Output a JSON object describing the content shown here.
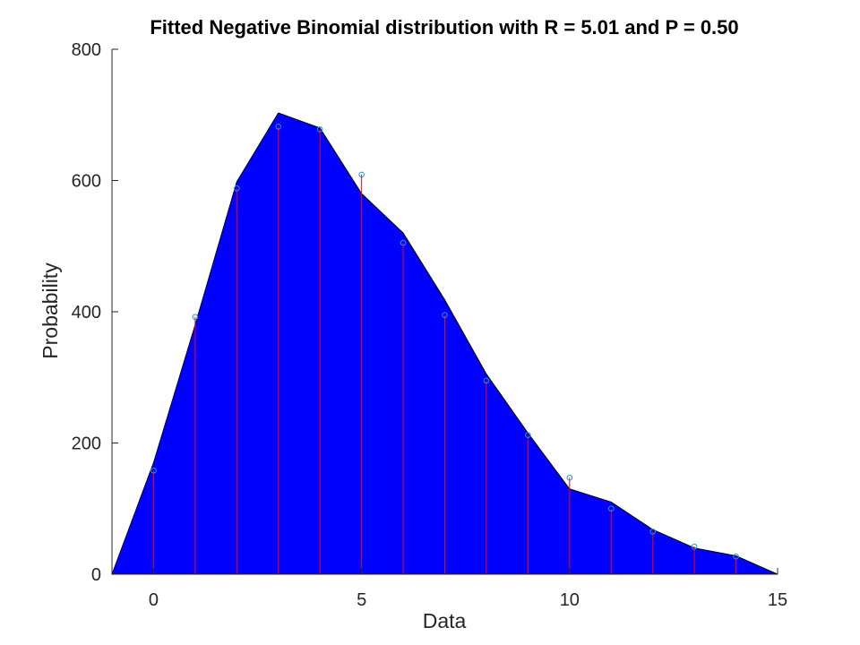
{
  "colors": {
    "fill": "#0000ff",
    "stem": "#ff0000",
    "marker": "#1a9cd0",
    "axis": "#262626",
    "background": "#ffffff"
  },
  "chart_data": {
    "type": "area",
    "title": "Fitted Negative Binomial distribution with R = 5.01 and P = 0.50",
    "xlabel": "Data",
    "ylabel": "Probability",
    "xlim": [
      -1,
      15
    ],
    "ylim": [
      0,
      800
    ],
    "xticks": [
      0,
      5,
      10,
      15
    ],
    "yticks": [
      0,
      200,
      400,
      600,
      800
    ],
    "grid": false,
    "series": [
      {
        "type": "area",
        "x": [
          -1,
          0,
          1,
          2,
          3,
          4,
          5,
          6,
          7,
          8,
          9,
          10,
          11,
          12,
          13,
          14,
          15
        ],
        "y": [
          0,
          170,
          380,
          598,
          703,
          680,
          580,
          520,
          418,
          305,
          215,
          130,
          110,
          68,
          40,
          28,
          0
        ]
      },
      {
        "type": "stem",
        "x": [
          0,
          1,
          2,
          3,
          4,
          5,
          6,
          7,
          8,
          9,
          10,
          11,
          12,
          13,
          14
        ],
        "y": [
          158,
          392,
          588,
          682,
          678,
          609,
          505,
          395,
          295,
          212,
          147,
          100,
          65,
          42,
          27
        ]
      }
    ]
  }
}
